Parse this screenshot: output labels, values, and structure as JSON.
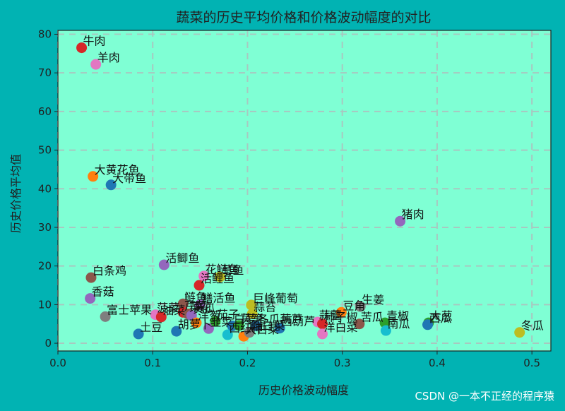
{
  "watermark": "CSDN @一本不正经的程序猿",
  "chart_data": {
    "type": "scatter",
    "title": "蔬菜的历史平均价格和价格波动幅度的对比",
    "xlabel": "历史价格波动幅度",
    "ylabel": "历史价格平均值",
    "xlim": [
      0.0,
      0.52
    ],
    "ylim": [
      -2,
      81
    ],
    "xticks": [
      0.0,
      0.1,
      0.2,
      0.3,
      0.4,
      0.5
    ],
    "xtick_labels": [
      "0.0",
      "0.1",
      "0.2",
      "0.3",
      "0.4",
      "0.5"
    ],
    "yticks": [
      0,
      10,
      20,
      30,
      40,
      50,
      60,
      70,
      80
    ],
    "ytick_labels": [
      "0",
      "10",
      "20",
      "30",
      "40",
      "50",
      "60",
      "70",
      "80"
    ],
    "grid": true,
    "legend": false,
    "colors": {
      "figure_background": "#01b3b3",
      "plot_background": "#7fffd4",
      "grid": "#a8c8c0"
    },
    "points": [
      {
        "label": "牛肉",
        "x": 0.025,
        "y": 76.5,
        "color": "#d62728"
      },
      {
        "label": "羊肉",
        "x": 0.04,
        "y": 72.2,
        "color": "#e377c2"
      },
      {
        "label": "大黄花鱼",
        "x": 0.037,
        "y": 43.2,
        "color": "#ff7f0e"
      },
      {
        "label": "大带鱼",
        "x": 0.056,
        "y": 41.0,
        "color": "#1f77b4"
      },
      {
        "label": "猪肉",
        "x": 0.361,
        "y": 31.6,
        "color": "#9467bd"
      },
      {
        "label": "活鲫鱼",
        "x": 0.112,
        "y": 20.3,
        "color": "#9467bd"
      },
      {
        "label": "花鲢鱼",
        "x": 0.154,
        "y": 17.4,
        "color": "#e377c2"
      },
      {
        "label": "草鱼",
        "x": 0.171,
        "y": 17.2,
        "color": "#bcbd22"
      },
      {
        "label": "活鲤鱼",
        "x": 0.149,
        "y": 15.0,
        "color": "#d62728"
      },
      {
        "label": "白条鸡",
        "x": 0.035,
        "y": 17.0,
        "color": "#8c564b"
      },
      {
        "label": "香菇",
        "x": 0.034,
        "y": 11.6,
        "color": "#9467bd"
      },
      {
        "label": "鲢鱼",
        "x": 0.132,
        "y": 10.2,
        "color": "#8c564b"
      },
      {
        "label": "鳝活鱼",
        "x": 0.15,
        "y": 10.0,
        "color": "#9467bd"
      },
      {
        "label": "巨峰葡萄",
        "x": 0.204,
        "y": 9.9,
        "color": "#bcbd22"
      },
      {
        "label": "豆角",
        "x": 0.299,
        "y": 8.0,
        "color": "#ff7f0e"
      },
      {
        "label": "生姜",
        "x": 0.319,
        "y": 9.5,
        "color": "#7f7f7f"
      },
      {
        "label": "富士苹果",
        "x": 0.05,
        "y": 6.9,
        "color": "#7f7f7f"
      },
      {
        "label": "菠菜",
        "x": 0.103,
        "y": 7.4,
        "color": "#e377c2"
      },
      {
        "label": "油菜",
        "x": 0.109,
        "y": 6.8,
        "color": "#d62728"
      },
      {
        "label": "芹菜",
        "x": 0.132,
        "y": 8.0,
        "color": "#d62728"
      },
      {
        "label": "菜花",
        "x": 0.137,
        "y": 7.6,
        "color": "#8c564b"
      },
      {
        "label": "黄瓜",
        "x": 0.141,
        "y": 7.2,
        "color": "#9467bd"
      },
      {
        "label": "蒜苔",
        "x": 0.205,
        "y": 7.6,
        "color": "#bcbd22"
      },
      {
        "label": "土豆",
        "x": 0.085,
        "y": 2.4,
        "color": "#1f77b4"
      },
      {
        "label": "胡萝卜",
        "x": 0.125,
        "y": 3.1,
        "color": "#1f77b4"
      },
      {
        "label": "洋葱",
        "x": 0.146,
        "y": 5.3,
        "color": "#ff7f0e"
      },
      {
        "label": "韭菜",
        "x": 0.159,
        "y": 3.8,
        "color": "#9467bd"
      },
      {
        "label": "茄子",
        "x": 0.166,
        "y": 5.7,
        "color": "#2ca02c"
      },
      {
        "label": "西红柿",
        "x": 0.179,
        "y": 2.2,
        "color": "#17becf"
      },
      {
        "label": "白萝卜",
        "x": 0.184,
        "y": 4.5,
        "color": "#1f77b4"
      },
      {
        "label": "莴笋",
        "x": 0.191,
        "y": 4.6,
        "color": "#2ca02c"
      },
      {
        "label": "大白菜",
        "x": 0.196,
        "y": 1.8,
        "color": "#ff7f0e"
      },
      {
        "label": "圆白菜",
        "x": 0.202,
        "y": 2.8,
        "color": "#7f7f7f"
      },
      {
        "label": "冬瓜葫芦",
        "x": 0.209,
        "y": 4.5,
        "color": "#1f77b4"
      },
      {
        "label": "西葫芦",
        "x": 0.234,
        "y": 3.9,
        "color": "#1f77b4"
      },
      {
        "label": "蒜薹",
        "x": 0.274,
        "y": 5.5,
        "color": "#e377c2"
      },
      {
        "label": "柿子椒",
        "x": 0.279,
        "y": 5.0,
        "color": "#d62728"
      },
      {
        "label": "洋白菜",
        "x": 0.279,
        "y": 2.4,
        "color": "#e377c2"
      },
      {
        "label": "苦瓜",
        "x": 0.318,
        "y": 5.0,
        "color": "#8c564b"
      },
      {
        "label": "青椒",
        "x": 0.345,
        "y": 5.3,
        "color": "#2ca02c"
      },
      {
        "label": "南瓜",
        "x": 0.346,
        "y": 3.3,
        "color": "#17becf"
      },
      {
        "label": "大葱",
        "x": 0.391,
        "y": 5.3,
        "color": "#2ca02c"
      },
      {
        "label": "西瓜",
        "x": 0.39,
        "y": 4.8,
        "color": "#1f77b4"
      },
      {
        "label": "冬瓜",
        "x": 0.487,
        "y": 2.8,
        "color": "#bcbd22"
      }
    ]
  }
}
